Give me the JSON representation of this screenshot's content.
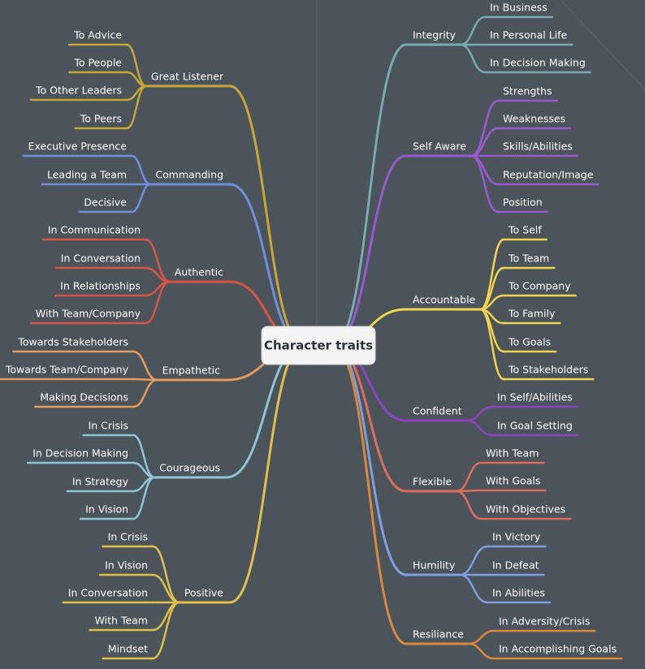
{
  "root": "Character traits",
  "right": [
    {
      "label": "Integrity",
      "color": "#78aab0",
      "children": [
        "In Business",
        "In Personal Life",
        "In Decision Making"
      ]
    },
    {
      "label": "Self Aware",
      "color": "#9b59d0",
      "children": [
        "Strengths",
        "Weaknesses",
        "Skills/Abilities",
        "Reputation/Image",
        "Position"
      ]
    },
    {
      "label": "Accountable",
      "color": "#f2d34f",
      "children": [
        "To Self",
        "To Team",
        "To Company",
        "To Family",
        "To Goals",
        "To Stakeholders"
      ]
    },
    {
      "label": "Confident",
      "color": "#8e44c0",
      "children": [
        "In Self/Abilities",
        "In Goal Setting"
      ]
    },
    {
      "label": "Flexible",
      "color": "#e06c5e",
      "children": [
        "With Team",
        "With Goals",
        "With Objectives"
      ]
    },
    {
      "label": "Humility",
      "color": "#7f9fe0",
      "children": [
        "In Victory",
        "In Defeat",
        "In Abilities"
      ]
    },
    {
      "label": "Resiliance",
      "color": "#d9883a",
      "children": [
        "In Adversity/Crisis",
        "In Accomplishing Goals"
      ]
    }
  ],
  "left": [
    {
      "label": "Great Listener",
      "color": "#c9a634",
      "children": [
        "To Advice",
        "To People",
        "To Other Leaders",
        "To Peers"
      ]
    },
    {
      "label": "Commanding",
      "color": "#6f8fd8",
      "children": [
        "Executive Presence",
        "Leading a Team",
        "Decisive"
      ]
    },
    {
      "label": "Authentic",
      "color": "#d85444",
      "children": [
        "In Communication",
        "In Conversation",
        "In Relationships",
        "With Team/Company"
      ]
    },
    {
      "label": "Empathetic",
      "color": "#e89a5a",
      "children": [
        "Towards Stakeholders",
        "Towards Team/Company",
        "Making Decisions"
      ]
    },
    {
      "label": "Courageous",
      "color": "#8ec6d4",
      "children": [
        "In Crisis",
        "In Decision Making",
        "In Strategy",
        "In Vision"
      ]
    },
    {
      "label": "Positive",
      "color": "#e0c04a",
      "children": [
        "In Crisis",
        "In Vision",
        "In Conversation",
        "With Team",
        "Mindset"
      ]
    }
  ]
}
